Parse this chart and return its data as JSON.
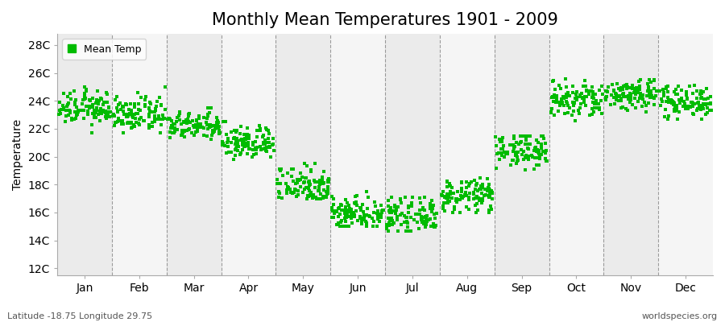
{
  "title": "Monthly Mean Temperatures 1901 - 2009",
  "ylabel": "Temperature",
  "subtitle_left": "Latitude -18.75 Longitude 29.75",
  "subtitle_right": "worldspecies.org",
  "months": [
    "Jan",
    "Feb",
    "Mar",
    "Apr",
    "May",
    "Jun",
    "Jul",
    "Aug",
    "Sep",
    "Oct",
    "Nov",
    "Dec"
  ],
  "yticks": [
    12,
    14,
    16,
    18,
    20,
    22,
    24,
    26,
    28
  ],
  "ytick_labels": [
    "12C",
    "14C",
    "16C",
    "18C",
    "20C",
    "22C",
    "24C",
    "26C",
    "28C"
  ],
  "ylim": [
    11.5,
    28.8
  ],
  "xlim": [
    0.0,
    12.0
  ],
  "dot_color": "#00BB00",
  "bg_color_odd": "#EBEBEB",
  "bg_color_even": "#F5F5F5",
  "legend_bg": "#FFFFFF",
  "grid_color": "#777777",
  "title_fontsize": 15,
  "axis_fontsize": 10,
  "tick_fontsize": 10,
  "month_mean_temps": [
    23.5,
    23.0,
    22.2,
    21.0,
    18.0,
    16.0,
    15.7,
    17.2,
    20.5,
    24.0,
    24.5,
    24.0
  ],
  "month_std_temps": [
    0.6,
    0.6,
    0.5,
    0.6,
    0.7,
    0.6,
    0.6,
    0.6,
    0.6,
    0.7,
    0.6,
    0.6
  ],
  "month_temp_ranges": [
    [
      21.5,
      25.0
    ],
    [
      21.7,
      25.0
    ],
    [
      21.0,
      23.5
    ],
    [
      19.4,
      22.5
    ],
    [
      17.0,
      19.5
    ],
    [
      15.0,
      17.5
    ],
    [
      14.7,
      17.1
    ],
    [
      16.0,
      18.5
    ],
    [
      19.0,
      21.5
    ],
    [
      22.0,
      26.5
    ],
    [
      23.0,
      25.5
    ],
    [
      22.7,
      25.1
    ]
  ],
  "n_years": 109
}
